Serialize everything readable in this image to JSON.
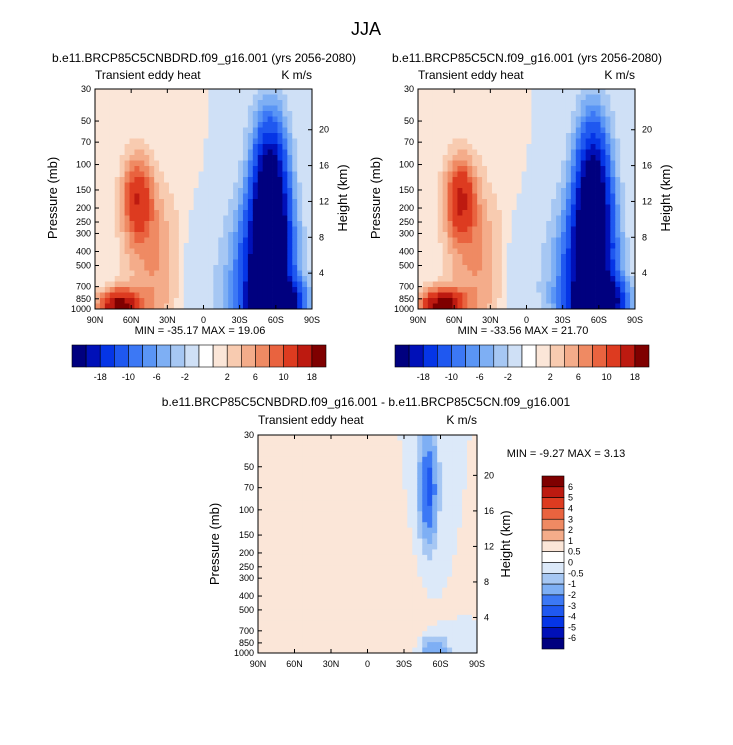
{
  "page": {
    "title": "JJA"
  },
  "colors": {
    "blue_scale": [
      "#00007f",
      "#0010b8",
      "#0535e6",
      "#1f58f0",
      "#3c78f5",
      "#5a95f5",
      "#7eaff4",
      "#a6c7f3",
      "#cfe0f6",
      "#e9f1fb"
    ],
    "red_scale": [
      "#fbe6d8",
      "#f8cbb0",
      "#f4ac8a",
      "#ef8a63",
      "#e9633f",
      "#dd3b20",
      "#bd1a10",
      "#7f0000"
    ],
    "neutral": "#ffffff"
  },
  "chart_data": [
    {
      "id": "panel-a",
      "type": "heatmap",
      "title": "b.e11.BRCP85C5CNBDRD.f09_g16.001 (yrs 2056-2080)",
      "left_label": "Transient eddy heat",
      "right_label": "K m/s",
      "xlabel": "",
      "ylabel": "Pressure (mb)",
      "ylabel_right": "Height (km)",
      "x_ticks": [
        "90N",
        "60N",
        "30N",
        "0",
        "30S",
        "60S",
        "90S"
      ],
      "x_values": [
        90,
        60,
        30,
        0,
        -30,
        -60,
        -90
      ],
      "y_ticks": [
        "30",
        "50",
        "70",
        "100",
        "150",
        "200",
        "250",
        "300",
        "400",
        "500",
        "700",
        "850",
        "1000"
      ],
      "y_values": [
        30,
        50,
        70,
        100,
        150,
        200,
        250,
        300,
        400,
        500,
        700,
        850,
        1000
      ],
      "height_ticks": [
        "20",
        "16",
        "12",
        "8",
        "4"
      ],
      "height_values": [
        20,
        16,
        12,
        8,
        4
      ],
      "ylim": [
        30,
        1000
      ],
      "xlim": [
        90,
        -90
      ],
      "stats": "MIN = -35.17  MAX = 19.06",
      "min": -35.17,
      "max": 19.06,
      "colorbar_labels": [
        "-18",
        "-10",
        "-6",
        "-2",
        "2",
        "6",
        "10",
        "18"
      ],
      "features": [
        {
          "lat": -60,
          "p": 900,
          "value": -35,
          "lat_sd": 14,
          "p_sd": 1.3
        },
        {
          "lat": -55,
          "p": 150,
          "value": -28,
          "lat_sd": 10,
          "p_sd": 2.2
        },
        {
          "lat": -55,
          "p": 400,
          "value": -22,
          "lat_sd": 12,
          "p_sd": 1.8
        },
        {
          "lat": -45,
          "p": 700,
          "value": -12,
          "lat_sd": 18,
          "p_sd": 2.5
        },
        {
          "lat": 70,
          "p": 950,
          "value": 19,
          "lat_sd": 12,
          "p_sd": 1.2
        },
        {
          "lat": 55,
          "p": 170,
          "value": 12,
          "lat_sd": 9,
          "p_sd": 1.6
        },
        {
          "lat": 40,
          "p": 500,
          "value": 6,
          "lat_sd": 18,
          "p_sd": 2.5
        },
        {
          "lat": 10,
          "p": 600,
          "value": -3,
          "lat_sd": 10,
          "p_sd": 2.0
        }
      ]
    },
    {
      "id": "panel-b",
      "type": "heatmap",
      "title": "b.e11.BRCP85C5CN.f09_g16.001 (yrs 2056-2080)",
      "left_label": "Transient eddy heat",
      "right_label": "K m/s",
      "xlabel": "",
      "ylabel": "Pressure (mb)",
      "ylabel_right": "Height (km)",
      "x_ticks": [
        "90N",
        "60N",
        "30N",
        "0",
        "30S",
        "60S",
        "90S"
      ],
      "x_values": [
        90,
        60,
        30,
        0,
        -30,
        -60,
        -90
      ],
      "y_ticks": [
        "30",
        "50",
        "70",
        "100",
        "150",
        "200",
        "250",
        "300",
        "400",
        "500",
        "700",
        "850",
        "1000"
      ],
      "y_values": [
        30,
        50,
        70,
        100,
        150,
        200,
        250,
        300,
        400,
        500,
        700,
        850,
        1000
      ],
      "height_ticks": [
        "20",
        "16",
        "12",
        "8",
        "4"
      ],
      "height_values": [
        20,
        16,
        12,
        8,
        4
      ],
      "ylim": [
        30,
        1000
      ],
      "xlim": [
        90,
        -90
      ],
      "stats": "MIN = -33.56  MAX = 21.70",
      "min": -33.56,
      "max": 21.7,
      "colorbar_labels": [
        "-18",
        "-10",
        "-6",
        "-2",
        "2",
        "6",
        "10",
        "18"
      ],
      "features": [
        {
          "lat": -60,
          "p": 900,
          "value": -33,
          "lat_sd": 14,
          "p_sd": 1.3
        },
        {
          "lat": -55,
          "p": 150,
          "value": -26,
          "lat_sd": 10,
          "p_sd": 2.2
        },
        {
          "lat": -55,
          "p": 400,
          "value": -20,
          "lat_sd": 12,
          "p_sd": 1.8
        },
        {
          "lat": -45,
          "p": 700,
          "value": -11,
          "lat_sd": 18,
          "p_sd": 2.5
        },
        {
          "lat": 70,
          "p": 950,
          "value": 21,
          "lat_sd": 12,
          "p_sd": 1.2
        },
        {
          "lat": 55,
          "p": 170,
          "value": 13,
          "lat_sd": 9,
          "p_sd": 1.6
        },
        {
          "lat": 40,
          "p": 500,
          "value": 6,
          "lat_sd": 18,
          "p_sd": 2.5
        },
        {
          "lat": 10,
          "p": 600,
          "value": -3,
          "lat_sd": 10,
          "p_sd": 2.0
        }
      ]
    },
    {
      "id": "panel-diff",
      "type": "heatmap",
      "title": "b.e11.BRCP85C5CNBDRD.f09_g16.001 - b.e11.BRCP85C5CN.f09_g16.001",
      "left_label": "Transient eddy heat",
      "right_label": "K m/s",
      "xlabel": "",
      "ylabel": "Pressure (mb)",
      "ylabel_right": "Height (km)",
      "x_ticks": [
        "90N",
        "60N",
        "30N",
        "0",
        "30S",
        "60S",
        "90S"
      ],
      "x_values": [
        90,
        60,
        30,
        0,
        -30,
        -60,
        -90
      ],
      "y_ticks": [
        "30",
        "50",
        "70",
        "100",
        "150",
        "200",
        "250",
        "300",
        "400",
        "500",
        "700",
        "850",
        "1000"
      ],
      "y_values": [
        30,
        50,
        70,
        100,
        150,
        200,
        250,
        300,
        400,
        500,
        700,
        850,
        1000
      ],
      "height_ticks": [
        "20",
        "16",
        "12",
        "8",
        "4"
      ],
      "height_values": [
        20,
        16,
        12,
        8,
        4
      ],
      "ylim": [
        30,
        1000
      ],
      "xlim": [
        90,
        -90
      ],
      "stats": "MIN = -9.27  MAX =  3.13",
      "min": -9.27,
      "max": 3.13,
      "colorbar_labels": [
        "6",
        "5",
        "4",
        "3",
        "2",
        "1",
        "0.5",
        "0",
        "-0.5",
        "-1",
        "-2",
        "-3",
        "-4",
        "-5",
        "-6"
      ],
      "features": [
        {
          "lat": -50,
          "p": 70,
          "value": -3.5,
          "lat_sd": 5,
          "p_sd": 1.8
        },
        {
          "lat": -55,
          "p": 950,
          "value": -2.0,
          "lat_sd": 8,
          "p_sd": 1.15
        },
        {
          "lat": 30,
          "p": 200,
          "value": 0.4,
          "lat_sd": 20,
          "p_sd": 1.4
        },
        {
          "lat": -25,
          "p": 700,
          "value": 0.5,
          "lat_sd": 12,
          "p_sd": 2.0
        }
      ]
    }
  ]
}
